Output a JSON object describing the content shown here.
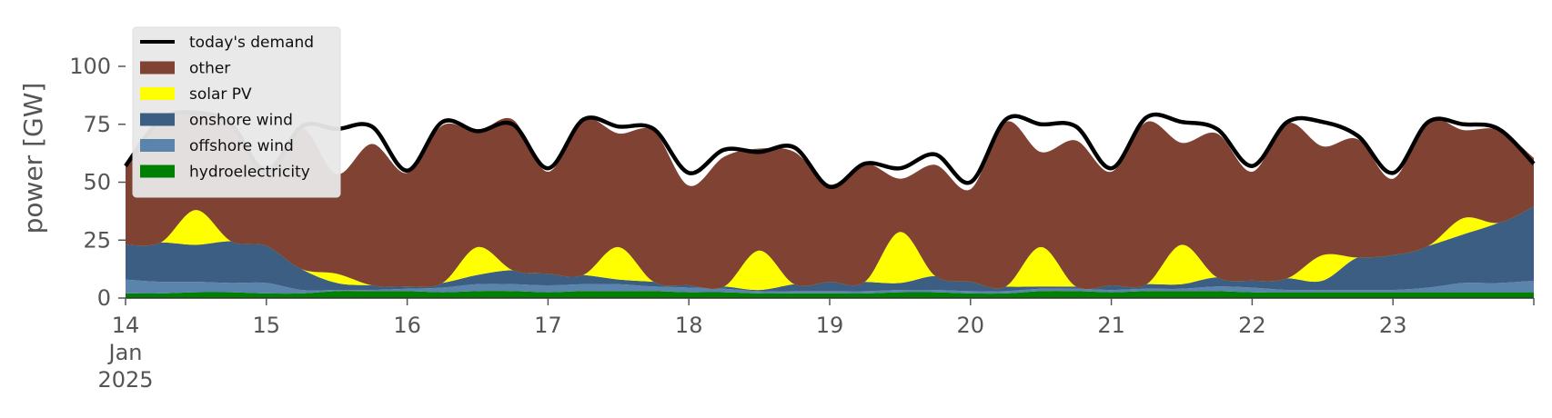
{
  "chart_data": {
    "type": "area",
    "title": "",
    "xlabel": "",
    "ylabel": "power [GW]",
    "ylim": [
      0,
      120
    ],
    "y_ticks": [
      "0",
      "25",
      "50",
      "75",
      "100"
    ],
    "x_range": [
      "2025-01-14T00:00",
      "2025-01-24T00:00"
    ],
    "x_ticks": [
      {
        "date": "2025-01-14",
        "label": "14",
        "sub1": "Jan",
        "sub2": "2025"
      },
      {
        "date": "2025-01-15",
        "label": "15"
      },
      {
        "date": "2025-01-16",
        "label": "16"
      },
      {
        "date": "2025-01-17",
        "label": "17"
      },
      {
        "date": "2025-01-18",
        "label": "18"
      },
      {
        "date": "2025-01-19",
        "label": "19"
      },
      {
        "date": "2025-01-20",
        "label": "20"
      },
      {
        "date": "2025-01-21",
        "label": "21"
      },
      {
        "date": "2025-01-22",
        "label": "22"
      },
      {
        "date": "2025-01-23",
        "label": "23"
      }
    ],
    "grid": false,
    "legend_position": "top-left",
    "x": [
      "2025-01-14T00:00",
      "2025-01-14T06:00",
      "2025-01-14T12:00",
      "2025-01-14T18:00",
      "2025-01-15T00:00",
      "2025-01-15T06:00",
      "2025-01-15T12:00",
      "2025-01-15T18:00",
      "2025-01-16T00:00",
      "2025-01-16T06:00",
      "2025-01-16T12:00",
      "2025-01-16T18:00",
      "2025-01-17T00:00",
      "2025-01-17T06:00",
      "2025-01-17T12:00",
      "2025-01-17T18:00",
      "2025-01-18T00:00",
      "2025-01-18T06:00",
      "2025-01-18T12:00",
      "2025-01-18T18:00",
      "2025-01-19T00:00",
      "2025-01-19T06:00",
      "2025-01-19T12:00",
      "2025-01-19T18:00",
      "2025-01-20T00:00",
      "2025-01-20T06:00",
      "2025-01-20T12:00",
      "2025-01-20T18:00",
      "2025-01-21T00:00",
      "2025-01-21T06:00",
      "2025-01-21T12:00",
      "2025-01-21T18:00",
      "2025-01-22T00:00",
      "2025-01-22T06:00",
      "2025-01-22T12:00",
      "2025-01-22T18:00",
      "2025-01-23T00:00",
      "2025-01-23T06:00",
      "2025-01-23T12:00",
      "2025-01-23T18:00",
      "2025-01-24T00:00"
    ],
    "series": [
      {
        "name": "hydroelectricity",
        "kind": "area",
        "color": "#008000",
        "values": [
          2,
          2,
          2.5,
          2.5,
          2,
          2,
          3,
          3,
          3,
          2.5,
          3,
          3,
          2.5,
          3,
          3,
          3,
          2.5,
          2.5,
          2,
          2,
          2,
          2,
          2.5,
          2.5,
          2,
          2,
          3,
          3,
          2.5,
          3,
          3,
          3,
          2.5,
          2.5,
          2.5,
          2.5,
          2.5,
          2.5,
          2.5,
          2.5,
          2.5
        ]
      },
      {
        "name": "offshore wind",
        "kind": "area",
        "color": "#5b84ad",
        "values": [
          6,
          5,
          4.5,
          4,
          4.5,
          1.5,
          0.5,
          0.5,
          1,
          2,
          3,
          3,
          3,
          3,
          3,
          2,
          2,
          1.5,
          1,
          1,
          1,
          1,
          1,
          1,
          1,
          1,
          1,
          1,
          1,
          1,
          1,
          2,
          2,
          1,
          1,
          1,
          1,
          2,
          4,
          4,
          5
        ]
      },
      {
        "name": "onshore wind",
        "kind": "area",
        "color": "#3b5e82",
        "values": [
          15,
          17,
          16,
          18,
          16,
          9,
          3,
          2,
          1,
          2,
          4,
          6,
          5,
          4,
          2,
          2,
          1,
          1,
          0.5,
          3,
          4,
          4,
          3,
          6,
          4,
          2,
          1,
          1,
          2,
          2,
          2,
          4,
          3,
          5,
          4,
          14,
          15,
          18,
          21,
          26,
          32
        ]
      },
      {
        "name": "solar PV",
        "kind": "area",
        "color": "#ffff00",
        "values": [
          0,
          0,
          15,
          0,
          0,
          0,
          4,
          0,
          0,
          0,
          12,
          0,
          0,
          0,
          14,
          0,
          0,
          0,
          17,
          0,
          0,
          0,
          22,
          0,
          0,
          0,
          17,
          0,
          0,
          0,
          17,
          0,
          0,
          0,
          11,
          0,
          0,
          0,
          7,
          0,
          0
        ]
      },
      {
        "name": "other",
        "kind": "area",
        "color": "#7f4233",
        "values": [
          34,
          53,
          42,
          50,
          34,
          61,
          43,
          61,
          49,
          68,
          50,
          65,
          44,
          67,
          49,
          65,
          43,
          56,
          44,
          57,
          42,
          51,
          23,
          48,
          40,
          71,
          41,
          63,
          49,
          70,
          44,
          62,
          47,
          67,
          47,
          51,
          33,
          54,
          38,
          40,
          21
        ]
      },
      {
        "name": "today's demand",
        "kind": "line",
        "color": "#000000",
        "values": [
          57,
          77,
          80,
          75,
          54,
          74,
          73,
          74,
          55,
          76,
          72,
          75,
          56,
          77,
          74,
          73,
          54,
          64,
          63,
          65,
          48,
          58,
          56,
          62,
          50,
          77,
          75,
          74,
          56,
          78,
          76,
          73,
          57,
          76,
          76,
          70,
          54,
          76,
          75,
          73,
          58
        ]
      }
    ]
  }
}
